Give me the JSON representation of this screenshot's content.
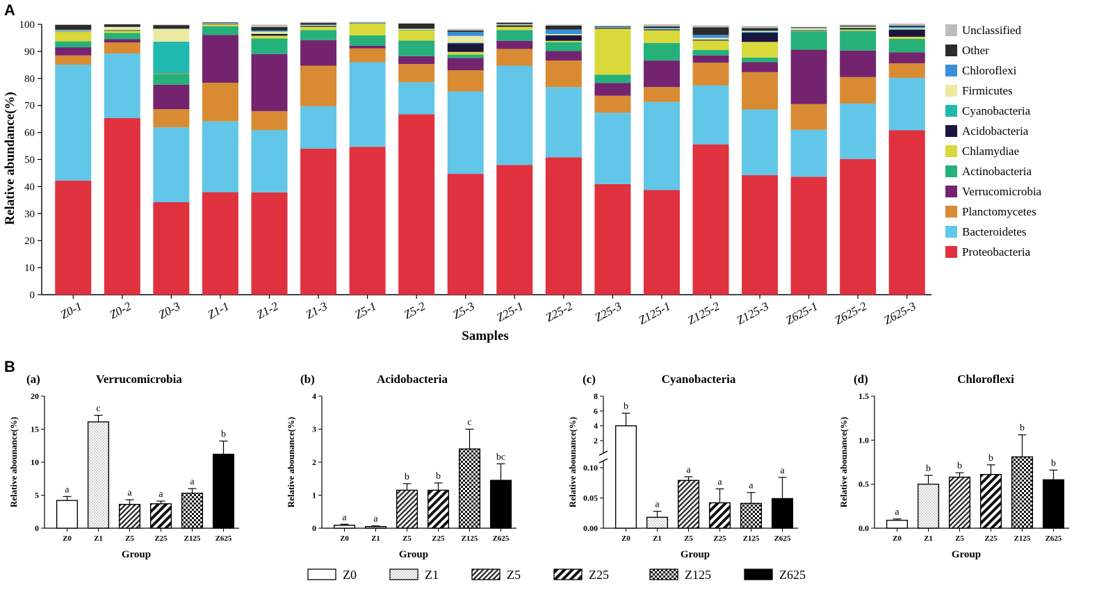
{
  "panelA": {
    "label": "A",
    "chart_data": {
      "type": "bar",
      "stacked": true,
      "ylabel": "Relative abundance(%)",
      "xlabel": "Samples",
      "ylim": [
        0,
        100
      ],
      "yticks": [
        0,
        10,
        20,
        30,
        40,
        50,
        60,
        70,
        80,
        90,
        100
      ],
      "categories": [
        "Z0-1",
        "Z0-2",
        "Z0-3",
        "Z1-1",
        "Z1-2",
        "Z1-3",
        "Z5-1",
        "Z5-2",
        "Z5-3",
        "Z25-1",
        "Z25-2",
        "Z25-3",
        "Z125-1",
        "Z125-2",
        "Z125-3",
        "Z625-1",
        "Z625-2",
        "Z625-3"
      ],
      "series": [
        {
          "name": "Proteobacteria",
          "color": "#e0313f",
          "values": [
            42.2,
            65.3,
            34.2,
            37.9,
            37.8,
            54.0,
            54.7,
            66.7,
            44.7,
            48.0,
            50.8,
            40.9,
            38.7,
            55.6,
            44.2,
            43.6,
            50.2,
            60.8
          ]
        },
        {
          "name": "Bacteroidetes",
          "color": "#62c6e8",
          "values": [
            42.9,
            23.9,
            27.7,
            26.2,
            23.1,
            15.7,
            31.3,
            11.9,
            30.5,
            36.7,
            26.0,
            26.4,
            32.6,
            21.8,
            24.3,
            17.4,
            20.5,
            19.4
          ]
        },
        {
          "name": "Planctomycetes",
          "color": "#d98b33",
          "values": [
            3.4,
            4.1,
            6.7,
            14.3,
            7.0,
            15.0,
            5.1,
            6.7,
            7.8,
            6.2,
            9.8,
            6.3,
            5.5,
            8.4,
            13.8,
            9.5,
            9.8,
            5.4
          ]
        },
        {
          "name": "Verrucomicrobia",
          "color": "#74246e",
          "values": [
            3.0,
            1.2,
            9.1,
            17.7,
            21.1,
            9.4,
            1.0,
            2.9,
            4.6,
            3.0,
            3.5,
            4.7,
            9.8,
            2.7,
            3.7,
            20.1,
            9.8,
            4.0
          ]
        },
        {
          "name": "Actinobacteria",
          "color": "#26b07a",
          "values": [
            2.2,
            2.3,
            4.0,
            3.2,
            5.8,
            3.8,
            3.8,
            5.8,
            1.2,
            4.0,
            3.3,
            3.1,
            6.5,
            2.0,
            1.7,
            6.8,
            7.3,
            5.0
          ]
        },
        {
          "name": "Chlamydiae",
          "color": "#d9d93c",
          "values": [
            3.6,
            0.8,
            0.2,
            0.6,
            1.0,
            1.2,
            4.4,
            3.8,
            1.0,
            1.2,
            0.5,
            17.0,
            4.7,
            3.5,
            5.8,
            0.2,
            0.5,
            0.8
          ]
        },
        {
          "name": "Acidobacteria",
          "color": "#1b1540",
          "values": [
            0.1,
            0.2,
            0.1,
            0.1,
            0.6,
            0.3,
            0.1,
            0.1,
            3.2,
            0.5,
            2.0,
            0.3,
            0.3,
            0.3,
            3.4,
            0.2,
            0.5,
            2.6
          ]
        },
        {
          "name": "Cyanobacteria",
          "color": "#20b9b0",
          "values": [
            0.1,
            0.1,
            11.6,
            0.1,
            0.1,
            0.1,
            0.1,
            0.1,
            0.2,
            0.1,
            0.1,
            0.1,
            0.1,
            0.1,
            0.3,
            0.1,
            0.1,
            0.2
          ]
        },
        {
          "name": "Firmicutes",
          "color": "#ece9a1",
          "values": [
            0.2,
            1.1,
            4.7,
            0.2,
            0.8,
            0.2,
            0.1,
            0.3,
            2.5,
            0.3,
            0.4,
            0.1,
            0.2,
            0.6,
            0.3,
            0.6,
            0.4,
            0.4
          ]
        },
        {
          "name": "Chloroflexi",
          "color": "#3b8fd9",
          "values": [
            0.3,
            0.1,
            0.1,
            0.1,
            0.4,
            0.2,
            0.1,
            0.1,
            1.5,
            0.1,
            1.7,
            0.2,
            0.3,
            1.1,
            0.2,
            0.2,
            0.1,
            0.5
          ]
        },
        {
          "name": "Other",
          "color": "#2d2a2a",
          "values": [
            1.8,
            0.9,
            1.3,
            0.3,
            1.3,
            0.6,
            0.1,
            1.9,
            0.5,
            0.5,
            1.4,
            0.2,
            0.5,
            2.8,
            0.9,
            0.2,
            0.3,
            0.4
          ]
        },
        {
          "name": "Unclassified",
          "color": "#bcbcbc",
          "values": [
            0.2,
            0.0,
            0.2,
            0.1,
            0.9,
            0.4,
            0.1,
            0.1,
            0.6,
            0.2,
            0.4,
            0.2,
            0.8,
            0.7,
            0.8,
            0.2,
            0.4,
            0.8
          ]
        }
      ]
    }
  },
  "panelB": {
    "label": "B",
    "chart_data": [
      {
        "type": "bar",
        "panel": "(a)",
        "title": "Verrucomicrobia",
        "ylabel": "Relative abounance(%)",
        "xlabel": "Group",
        "ylim": [
          0,
          20
        ],
        "yticks": [
          0,
          5,
          10,
          15,
          20
        ],
        "categories": [
          "Z0",
          "Z1",
          "Z5",
          "Z25",
          "Z125",
          "Z625"
        ],
        "values": [
          4.2,
          16.1,
          3.6,
          3.7,
          5.3,
          11.2
        ],
        "errors": [
          0.6,
          1.0,
          0.7,
          0.4,
          0.7,
          2.0
        ],
        "letters": [
          "a",
          "c",
          "a",
          "a",
          "a",
          "b"
        ]
      },
      {
        "type": "bar",
        "panel": "(b)",
        "title": "Acidobacteria",
        "ylabel": "Relative abounance(%)",
        "xlabel": "Group",
        "ylim": [
          0,
          4
        ],
        "yticks": [
          0,
          1,
          2,
          3,
          4
        ],
        "categories": [
          "Z0",
          "Z1",
          "Z5",
          "Z25",
          "Z125",
          "Z625"
        ],
        "values": [
          0.09,
          0.05,
          1.15,
          1.15,
          2.4,
          1.45
        ],
        "errors": [
          0.03,
          0.02,
          0.2,
          0.22,
          0.6,
          0.5
        ],
        "letters": [
          "a",
          "a",
          "b",
          "b",
          "c",
          "bc"
        ]
      },
      {
        "type": "bar",
        "panel": "(c)",
        "title": "Cyanobacteria",
        "ylabel": "Relative abounance(%)",
        "xlabel": "Group",
        "broken_axis": true,
        "ylim_lower": [
          0,
          0.1
        ],
        "ylim_upper": [
          0,
          8
        ],
        "yticks_lower": [
          "0.00",
          "0.05",
          "0.10"
        ],
        "yticks_upper": [
          "2",
          "4",
          "6",
          "8"
        ],
        "categories": [
          "Z0",
          "Z1",
          "Z5",
          "Z25",
          "Z125",
          "Z625"
        ],
        "values": [
          4.0,
          0.018,
          0.079,
          0.042,
          0.041,
          0.049
        ],
        "errors": [
          1.7,
          0.01,
          0.006,
          0.023,
          0.018,
          0.035
        ],
        "letters": [
          "b",
          "a",
          "a",
          "a",
          "a",
          "a"
        ]
      },
      {
        "type": "bar",
        "panel": "(d)",
        "title": "Chloroflexi",
        "ylabel": "Relative abounance(%)",
        "xlabel": "Group",
        "ylim": [
          0,
          1.5
        ],
        "yticks": [
          "0.0",
          "0.5",
          "1.0",
          "1.5"
        ],
        "categories": [
          "Z0",
          "Z1",
          "Z5",
          "Z25",
          "Z125",
          "Z625"
        ],
        "values": [
          0.09,
          0.5,
          0.58,
          0.61,
          0.81,
          0.55
        ],
        "errors": [
          0.015,
          0.1,
          0.05,
          0.11,
          0.25,
          0.11
        ],
        "letters": [
          "a",
          "b",
          "b",
          "b",
          "b",
          "b"
        ]
      }
    ],
    "legend": [
      "Z0",
      "Z1",
      "Z5",
      "Z25",
      "Z125",
      "Z625"
    ]
  }
}
